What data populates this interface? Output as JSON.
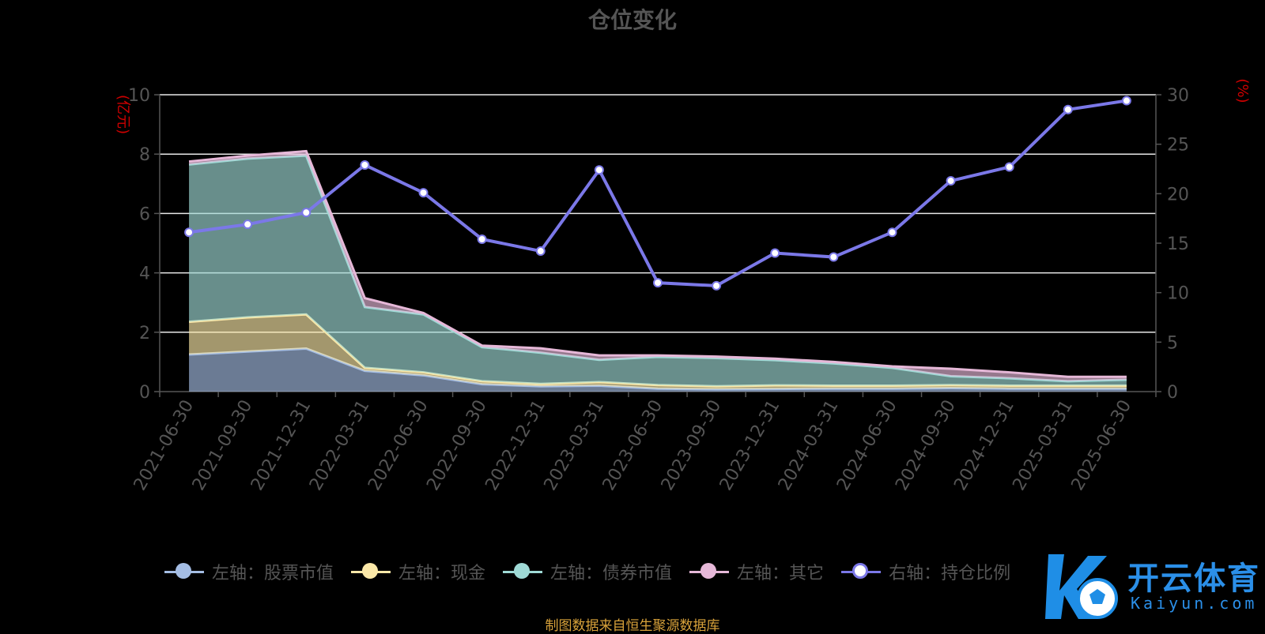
{
  "title": "仓位变化",
  "source_note": "制图数据来自恒生聚源数据库",
  "watermark": {
    "text": "开云体育",
    "sub": "Kaiyun.com"
  },
  "colors": {
    "stock": "#a4bde4",
    "cash": "#fbe8a8",
    "bond": "#9fdad6",
    "other": "#e6b8d8",
    "ratio": "#7b78e8",
    "axis_unit": "#d00000",
    "grid": "#e8e8e8",
    "tick_label": "#555555"
  },
  "chart_data": {
    "type": "area",
    "title": "仓位变化",
    "categories": [
      "2021-06-30",
      "2021-09-30",
      "2021-12-31",
      "2022-03-31",
      "2022-06-30",
      "2022-09-30",
      "2022-12-31",
      "2023-03-31",
      "2023-06-30",
      "2023-09-30",
      "2023-12-31",
      "2024-03-31",
      "2024-06-30",
      "2024-09-30",
      "2024-12-31",
      "2025-03-31",
      "2025-06-30"
    ],
    "y_left": {
      "unit": "(亿元)",
      "ylim": [
        0,
        10
      ],
      "ticks": [
        "0",
        "2",
        "4",
        "6",
        "8",
        "10"
      ]
    },
    "y_right": {
      "unit": "(%)",
      "ylim": [
        0,
        30
      ],
      "ticks": [
        "0",
        "5",
        "10",
        "15",
        "20",
        "25",
        "30"
      ]
    },
    "stacked": true,
    "series": [
      {
        "name": "左轴：股票市值",
        "axis": "left",
        "color_key": "stock",
        "values": [
          1.25,
          1.35,
          1.45,
          0.7,
          0.55,
          0.25,
          0.18,
          0.2,
          0.1,
          0.08,
          0.09,
          0.1,
          0.1,
          0.12,
          0.1,
          0.1,
          0.1
        ]
      },
      {
        "name": "左轴：现金",
        "axis": "left",
        "color_key": "cash",
        "values": [
          1.1,
          1.15,
          1.15,
          0.1,
          0.1,
          0.1,
          0.08,
          0.12,
          0.12,
          0.1,
          0.12,
          0.1,
          0.1,
          0.1,
          0.1,
          0.1,
          0.1
        ]
      },
      {
        "name": "左轴：债券市值",
        "axis": "left",
        "color_key": "bond",
        "values": [
          5.3,
          5.35,
          5.35,
          2.05,
          1.95,
          1.15,
          1.05,
          0.75,
          0.95,
          0.95,
          0.85,
          0.75,
          0.6,
          0.3,
          0.25,
          0.15,
          0.2
        ]
      },
      {
        "name": "左轴：其它",
        "axis": "left",
        "color_key": "other",
        "values": [
          0.1,
          0.1,
          0.15,
          0.3,
          0.05,
          0.05,
          0.15,
          0.15,
          0.05,
          0.05,
          0.05,
          0.05,
          0.05,
          0.25,
          0.2,
          0.15,
          0.1
        ]
      },
      {
        "name": "右轴：持仓比例",
        "axis": "right",
        "color_key": "ratio",
        "type": "line",
        "values": [
          16.1,
          16.9,
          18.1,
          22.9,
          20.1,
          15.4,
          14.2,
          22.4,
          11.0,
          10.7,
          14.0,
          13.6,
          16.1,
          21.3,
          22.7,
          28.5,
          29.4
        ]
      }
    ],
    "grid": true,
    "legend_position": "bottom"
  }
}
